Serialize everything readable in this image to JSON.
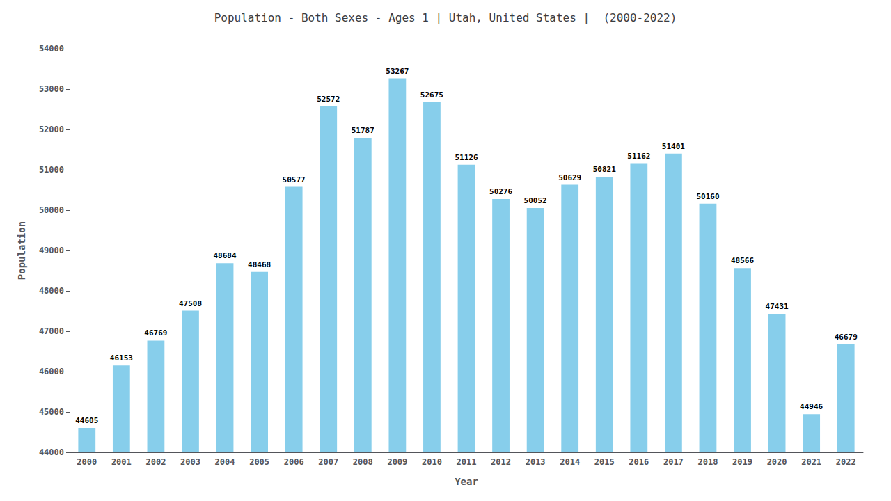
{
  "chart_data": {
    "type": "bar",
    "title": "Population - Both Sexes - Ages 1 | Utah, United States |  (2000-2022)",
    "xlabel": "Year",
    "ylabel": "Population",
    "categories": [
      "2000",
      "2001",
      "2002",
      "2003",
      "2004",
      "2005",
      "2006",
      "2007",
      "2008",
      "2009",
      "2010",
      "2011",
      "2012",
      "2013",
      "2014",
      "2015",
      "2016",
      "2017",
      "2018",
      "2019",
      "2020",
      "2021",
      "2022"
    ],
    "values": [
      44605,
      46153,
      46769,
      47508,
      48684,
      48468,
      50577,
      52572,
      51787,
      53267,
      52675,
      51126,
      50276,
      50052,
      50629,
      50821,
      51162,
      51401,
      50160,
      48566,
      47431,
      44946,
      46679
    ],
    "color": "#87CEEB",
    "ylim": [
      44000,
      54000
    ],
    "yticks": [
      44000,
      45000,
      46000,
      47000,
      48000,
      49000,
      50000,
      51000,
      52000,
      53000,
      54000
    ],
    "grid": false,
    "data_labels": true
  }
}
